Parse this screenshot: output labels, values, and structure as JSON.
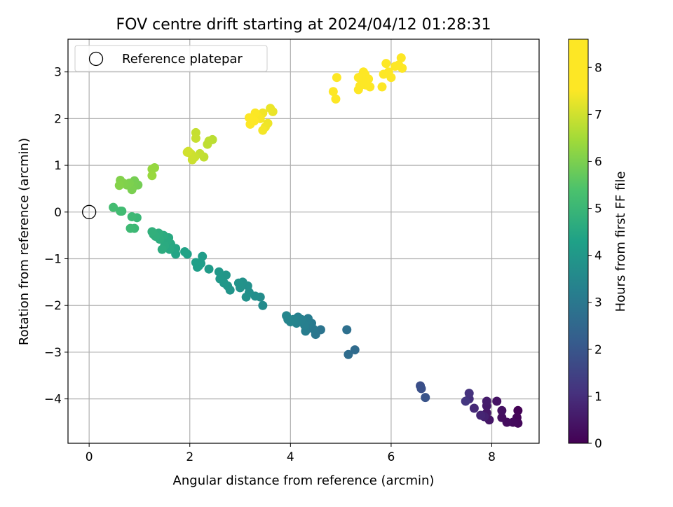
{
  "chart_data": {
    "type": "scatter",
    "title": "FOV centre drift starting at 2024/04/12 01:28:31",
    "xlabel": "Angular distance from reference (arcmin)",
    "ylabel": "Rotation from reference (arcmin)",
    "xlim": [
      -0.42,
      8.94
    ],
    "ylim": [
      -4.95,
      3.7
    ],
    "xticks": [
      "0",
      "2",
      "4",
      "6",
      "8"
    ],
    "yticks": [
      "−4",
      "−3",
      "−2",
      "−1",
      "0",
      "1",
      "2",
      "3"
    ],
    "grid": true,
    "legend": {
      "placement": "top-left",
      "entries": [
        "Reference platepar"
      ]
    },
    "reference_point": {
      "x": 0,
      "y": 0
    },
    "colorbar": {
      "label": "Hours from first FF file",
      "range": [
        0,
        8.6
      ],
      "ticks": [
        "0",
        "1",
        "2",
        "3",
        "4",
        "5",
        "6",
        "7",
        "8"
      ],
      "colormap": "viridis"
    },
    "points": [
      {
        "x": 8.52,
        "y": -4.25,
        "h": 0.05
      },
      {
        "x": 8.5,
        "y": -4.4,
        "h": 0.1
      },
      {
        "x": 8.52,
        "y": -4.52,
        "h": 0.15
      },
      {
        "x": 8.42,
        "y": -4.5,
        "h": 0.2
      },
      {
        "x": 8.3,
        "y": -4.5,
        "h": 0.25
      },
      {
        "x": 8.2,
        "y": -4.4,
        "h": 0.3
      },
      {
        "x": 8.2,
        "y": -4.25,
        "h": 0.35
      },
      {
        "x": 8.1,
        "y": -4.05,
        "h": 0.4
      },
      {
        "x": 7.95,
        "y": -4.45,
        "h": 0.45
      },
      {
        "x": 7.9,
        "y": -4.3,
        "h": 0.5
      },
      {
        "x": 7.9,
        "y": -4.15,
        "h": 0.55
      },
      {
        "x": 7.9,
        "y": -4.05,
        "h": 0.6
      },
      {
        "x": 7.85,
        "y": -4.38,
        "h": 0.7
      },
      {
        "x": 7.78,
        "y": -4.35,
        "h": 0.8
      },
      {
        "x": 7.65,
        "y": -4.2,
        "h": 0.9
      },
      {
        "x": 7.55,
        "y": -4.0,
        "h": 1.0
      },
      {
        "x": 7.55,
        "y": -3.88,
        "h": 1.1
      },
      {
        "x": 7.48,
        "y": -4.05,
        "h": 1.2
      },
      {
        "x": 6.58,
        "y": -3.72,
        "h": 1.8
      },
      {
        "x": 6.6,
        "y": -3.78,
        "h": 1.85
      },
      {
        "x": 6.68,
        "y": -3.97,
        "h": 1.95
      },
      {
        "x": 5.28,
        "y": -2.95,
        "h": 2.6
      },
      {
        "x": 5.15,
        "y": -3.05,
        "h": 2.65
      },
      {
        "x": 5.12,
        "y": -2.52,
        "h": 2.75
      },
      {
        "x": 4.6,
        "y": -2.52,
        "h": 2.9
      },
      {
        "x": 4.5,
        "y": -2.62,
        "h": 2.95
      },
      {
        "x": 4.45,
        "y": -2.5,
        "h": 3.0
      },
      {
        "x": 4.42,
        "y": -2.38,
        "h": 3.05
      },
      {
        "x": 4.35,
        "y": -2.4,
        "h": 3.1
      },
      {
        "x": 4.35,
        "y": -2.28,
        "h": 3.12
      },
      {
        "x": 4.3,
        "y": -2.55,
        "h": 3.15
      },
      {
        "x": 4.3,
        "y": -2.35,
        "h": 3.2
      },
      {
        "x": 4.28,
        "y": -2.42,
        "h": 3.22
      },
      {
        "x": 4.22,
        "y": -2.3,
        "h": 3.25
      },
      {
        "x": 4.15,
        "y": -2.25,
        "h": 3.3
      },
      {
        "x": 4.12,
        "y": -2.38,
        "h": 3.32
      },
      {
        "x": 4.08,
        "y": -2.32,
        "h": 3.35
      },
      {
        "x": 4.05,
        "y": -2.3,
        "h": 3.38
      },
      {
        "x": 4.0,
        "y": -2.35,
        "h": 3.4
      },
      {
        "x": 3.95,
        "y": -2.3,
        "h": 3.42
      },
      {
        "x": 3.92,
        "y": -2.22,
        "h": 3.45
      },
      {
        "x": 3.45,
        "y": -2.0,
        "h": 3.6
      },
      {
        "x": 3.4,
        "y": -1.82,
        "h": 3.65
      },
      {
        "x": 3.3,
        "y": -1.8,
        "h": 3.7
      },
      {
        "x": 3.18,
        "y": -1.72,
        "h": 3.72
      },
      {
        "x": 3.15,
        "y": -1.58,
        "h": 3.75
      },
      {
        "x": 3.12,
        "y": -1.82,
        "h": 3.78
      },
      {
        "x": 3.05,
        "y": -1.5,
        "h": 3.8
      },
      {
        "x": 3.0,
        "y": -1.62,
        "h": 3.82
      },
      {
        "x": 2.97,
        "y": -1.52,
        "h": 3.85
      },
      {
        "x": 2.8,
        "y": -1.67,
        "h": 3.9
      },
      {
        "x": 2.75,
        "y": -1.58,
        "h": 3.92
      },
      {
        "x": 2.72,
        "y": -1.35,
        "h": 3.95
      },
      {
        "x": 2.68,
        "y": -1.52,
        "h": 3.97
      },
      {
        "x": 2.6,
        "y": -1.43,
        "h": 4.0
      },
      {
        "x": 2.58,
        "y": -1.28,
        "h": 4.02
      },
      {
        "x": 2.38,
        "y": -1.22,
        "h": 4.1
      },
      {
        "x": 2.25,
        "y": -0.95,
        "h": 4.15
      },
      {
        "x": 2.22,
        "y": -1.1,
        "h": 4.18
      },
      {
        "x": 2.18,
        "y": -1.15,
        "h": 4.2
      },
      {
        "x": 2.15,
        "y": -1.18,
        "h": 4.22
      },
      {
        "x": 2.12,
        "y": -1.08,
        "h": 4.25
      },
      {
        "x": 1.95,
        "y": -0.9,
        "h": 4.3
      },
      {
        "x": 1.9,
        "y": -0.85,
        "h": 4.35
      },
      {
        "x": 1.72,
        "y": -0.9,
        "h": 4.4
      },
      {
        "x": 1.72,
        "y": -0.78,
        "h": 4.42
      },
      {
        "x": 1.62,
        "y": -0.68,
        "h": 4.5
      },
      {
        "x": 1.6,
        "y": -0.8,
        "h": 4.52
      },
      {
        "x": 1.58,
        "y": -0.55,
        "h": 4.55
      },
      {
        "x": 1.55,
        "y": -0.62,
        "h": 4.58
      },
      {
        "x": 1.5,
        "y": -0.72,
        "h": 4.6
      },
      {
        "x": 1.48,
        "y": -0.5,
        "h": 4.62
      },
      {
        "x": 1.45,
        "y": -0.8,
        "h": 4.65
      },
      {
        "x": 1.4,
        "y": -0.58,
        "h": 4.68
      },
      {
        "x": 1.38,
        "y": -0.45,
        "h": 4.7
      },
      {
        "x": 1.32,
        "y": -0.52,
        "h": 4.72
      },
      {
        "x": 1.28,
        "y": -0.48,
        "h": 4.75
      },
      {
        "x": 1.25,
        "y": -0.42,
        "h": 4.78
      },
      {
        "x": 0.95,
        "y": -0.12,
        "h": 5.0
      },
      {
        "x": 0.9,
        "y": -0.35,
        "h": 5.05
      },
      {
        "x": 0.85,
        "y": -0.1,
        "h": 5.08
      },
      {
        "x": 0.82,
        "y": -0.35,
        "h": 5.1
      },
      {
        "x": 0.65,
        "y": 0.02,
        "h": 5.15
      },
      {
        "x": 0.62,
        "y": 0.02,
        "h": 5.18
      },
      {
        "x": 0.48,
        "y": 0.1,
        "h": 5.22
      },
      {
        "x": 0.97,
        "y": 0.58,
        "h": 5.9
      },
      {
        "x": 0.9,
        "y": 0.67,
        "h": 5.92
      },
      {
        "x": 0.88,
        "y": 0.55,
        "h": 5.95
      },
      {
        "x": 0.85,
        "y": 0.48,
        "h": 5.97
      },
      {
        "x": 0.8,
        "y": 0.62,
        "h": 6.0
      },
      {
        "x": 0.75,
        "y": 0.58,
        "h": 6.02
      },
      {
        "x": 0.68,
        "y": 0.62,
        "h": 6.05
      },
      {
        "x": 0.62,
        "y": 0.68,
        "h": 6.07
      },
      {
        "x": 0.6,
        "y": 0.57,
        "h": 6.1
      },
      {
        "x": 1.3,
        "y": 0.95,
        "h": 6.3
      },
      {
        "x": 1.25,
        "y": 0.92,
        "h": 6.32
      },
      {
        "x": 1.25,
        "y": 0.78,
        "h": 6.35
      },
      {
        "x": 2.45,
        "y": 1.55,
        "h": 6.75
      },
      {
        "x": 2.38,
        "y": 1.52,
        "h": 6.78
      },
      {
        "x": 2.35,
        "y": 1.45,
        "h": 6.8
      },
      {
        "x": 2.28,
        "y": 1.18,
        "h": 6.82
      },
      {
        "x": 2.2,
        "y": 1.25,
        "h": 6.85
      },
      {
        "x": 2.12,
        "y": 1.7,
        "h": 6.88
      },
      {
        "x": 2.12,
        "y": 1.58,
        "h": 6.9
      },
      {
        "x": 2.1,
        "y": 1.18,
        "h": 6.92
      },
      {
        "x": 2.05,
        "y": 1.12,
        "h": 6.95
      },
      {
        "x": 2.02,
        "y": 1.25,
        "h": 6.97
      },
      {
        "x": 1.97,
        "y": 1.3,
        "h": 7.0
      },
      {
        "x": 1.95,
        "y": 1.28,
        "h": 7.02
      },
      {
        "x": 3.65,
        "y": 2.15,
        "h": 7.3
      },
      {
        "x": 3.6,
        "y": 2.22,
        "h": 7.32
      },
      {
        "x": 3.55,
        "y": 1.9,
        "h": 7.35
      },
      {
        "x": 3.5,
        "y": 1.82,
        "h": 7.37
      },
      {
        "x": 3.45,
        "y": 2.12,
        "h": 7.4
      },
      {
        "x": 3.45,
        "y": 1.75,
        "h": 7.42
      },
      {
        "x": 3.4,
        "y": 2.0,
        "h": 7.45
      },
      {
        "x": 3.35,
        "y": 2.05,
        "h": 7.47
      },
      {
        "x": 3.3,
        "y": 2.12,
        "h": 7.5
      },
      {
        "x": 3.28,
        "y": 1.95,
        "h": 7.52
      },
      {
        "x": 3.22,
        "y": 2.0,
        "h": 7.55
      },
      {
        "x": 3.2,
        "y": 1.88,
        "h": 7.57
      },
      {
        "x": 3.18,
        "y": 2.02,
        "h": 7.6
      },
      {
        "x": 4.92,
        "y": 2.88,
        "h": 7.9
      },
      {
        "x": 4.9,
        "y": 2.42,
        "h": 7.95
      },
      {
        "x": 4.85,
        "y": 2.58,
        "h": 8.0
      },
      {
        "x": 6.2,
        "y": 3.3,
        "h": 8.3
      },
      {
        "x": 6.22,
        "y": 3.08,
        "h": 8.32
      },
      {
        "x": 6.15,
        "y": 3.15,
        "h": 8.34
      },
      {
        "x": 6.08,
        "y": 3.12,
        "h": 8.36
      },
      {
        "x": 6.0,
        "y": 2.88,
        "h": 8.38
      },
      {
        "x": 5.95,
        "y": 3.0,
        "h": 8.4
      },
      {
        "x": 5.9,
        "y": 3.18,
        "h": 8.42
      },
      {
        "x": 5.85,
        "y": 2.95,
        "h": 8.44
      },
      {
        "x": 5.82,
        "y": 2.68,
        "h": 8.46
      },
      {
        "x": 5.58,
        "y": 2.68,
        "h": 8.48
      },
      {
        "x": 5.55,
        "y": 2.85,
        "h": 8.5
      },
      {
        "x": 5.5,
        "y": 2.72,
        "h": 8.52
      },
      {
        "x": 5.48,
        "y": 2.95,
        "h": 8.53
      },
      {
        "x": 5.45,
        "y": 3.0,
        "h": 8.54
      },
      {
        "x": 5.42,
        "y": 2.78,
        "h": 8.55
      },
      {
        "x": 5.4,
        "y": 2.9,
        "h": 8.56
      },
      {
        "x": 5.38,
        "y": 2.7,
        "h": 8.57
      },
      {
        "x": 5.35,
        "y": 2.62,
        "h": 8.58
      },
      {
        "x": 5.35,
        "y": 2.88,
        "h": 8.59
      }
    ]
  }
}
